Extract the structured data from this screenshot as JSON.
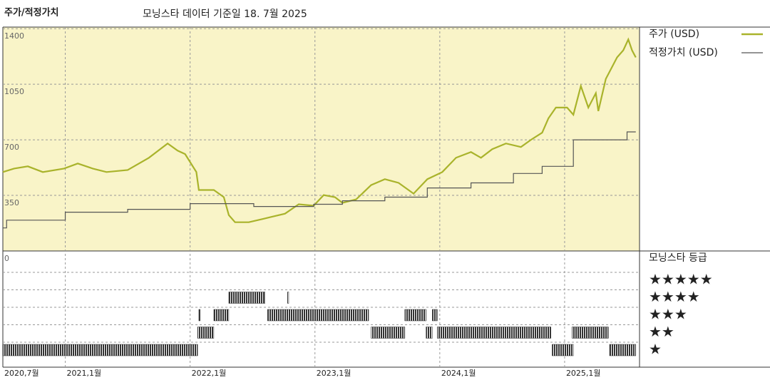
{
  "chart_data": {
    "type": "line",
    "title": "주가/적정가치",
    "subtitle": "모닝스타 데이터 기준일 18. 7월 2025",
    "xlim": [
      2020.5,
      2025.6
    ],
    "xticks": [
      {
        "value": 2020.5,
        "label": "2020,7월"
      },
      {
        "value": 2021,
        "label": "2021,1월"
      },
      {
        "value": 2022,
        "label": "2022,1월"
      },
      {
        "value": 2023,
        "label": "2023,1월"
      },
      {
        "value": 2024,
        "label": "2024,1월"
      },
      {
        "value": 2025,
        "label": "2025,1월"
      }
    ],
    "ylim": [
      0,
      1410
    ],
    "yticks": [
      0,
      350,
      700,
      1050,
      1400
    ],
    "grid": true,
    "background": "#f9f4c8",
    "series": [
      {
        "name": "주가 (USD)",
        "color": "#a9b32b",
        "step": false,
        "x": [
          2020.5,
          2020.59,
          2020.7,
          2020.82,
          2020.99,
          2021.1,
          2021.22,
          2021.33,
          2021.5,
          2021.67,
          2021.82,
          2021.9,
          2021.96,
          2022.05,
          2022.07,
          2022.19,
          2022.27,
          2022.31,
          2022.36,
          2022.47,
          2022.59,
          2022.76,
          2022.87,
          2022.99,
          2023.07,
          2023.16,
          2023.22,
          2023.33,
          2023.45,
          2023.56,
          2023.67,
          2023.79,
          2023.9,
          2024.02,
          2024.13,
          2024.25,
          2024.33,
          2024.42,
          2024.53,
          2024.65,
          2024.73,
          2024.82,
          2024.87,
          2024.93,
          2025.02,
          2025.07,
          2025.13,
          2025.19,
          2025.25,
          2025.27,
          2025.33,
          2025.36,
          2025.42,
          2025.47,
          2025.51,
          2025.54,
          2025.57
        ],
        "values": [
          497,
          519,
          533,
          497,
          519,
          551,
          519,
          497,
          510,
          587,
          677,
          632,
          610,
          497,
          384,
          384,
          339,
          226,
          181,
          181,
          203,
          235,
          294,
          285,
          352,
          339,
          303,
          325,
          415,
          452,
          429,
          361,
          452,
          497,
          587,
          623,
          587,
          641,
          677,
          655,
          700,
          745,
          835,
          903,
          903,
          858,
          1039,
          903,
          994,
          881,
          1084,
          1129,
          1219,
          1264,
          1332,
          1264,
          1219
        ]
      },
      {
        "name": "적정가치 (USD)",
        "color": "#555555",
        "step": true,
        "x": [
          2020.5,
          2020.53,
          2021.0,
          2021.5,
          2022.0,
          2022.51,
          2022.99,
          2023.22,
          2023.56,
          2023.9,
          2024.25,
          2024.59,
          2024.82,
          2025.07,
          2025.5,
          2025.57
        ],
        "values": [
          145,
          194,
          244,
          262,
          298,
          280,
          294,
          316,
          339,
          397,
          429,
          488,
          533,
          700,
          750,
          750
        ]
      }
    ],
    "rating_title": "모닝스타 등급",
    "rating_labels": [
      "★★★★★",
      "★★★★",
      "★★★",
      "★★",
      "★"
    ],
    "rating_stars": [
      5,
      4,
      3,
      2,
      1
    ],
    "rating_color": "#333333",
    "rating_segments": [
      {
        "start": 2020.5,
        "end": 2022.06,
        "stars": 1
      },
      {
        "start": 2024.9,
        "end": 2025.07,
        "stars": 1
      },
      {
        "start": 2025.36,
        "end": 2025.57,
        "stars": 1
      },
      {
        "start": 2022.06,
        "end": 2022.19,
        "stars": 2
      },
      {
        "start": 2023.45,
        "end": 2023.72,
        "stars": 2
      },
      {
        "start": 2023.89,
        "end": 2023.94,
        "stars": 2
      },
      {
        "start": 2023.98,
        "end": 2024.89,
        "stars": 2
      },
      {
        "start": 2025.06,
        "end": 2025.35,
        "stars": 2
      },
      {
        "start": 2022.07,
        "end": 2022.08,
        "stars": 3
      },
      {
        "start": 2022.19,
        "end": 2022.31,
        "stars": 3
      },
      {
        "start": 2022.62,
        "end": 2023.43,
        "stars": 3
      },
      {
        "start": 2023.72,
        "end": 2023.89,
        "stars": 3
      },
      {
        "start": 2023.94,
        "end": 2023.98,
        "stars": 3
      },
      {
        "start": 2022.31,
        "end": 2022.6,
        "stars": 4
      },
      {
        "start": 2022.78,
        "end": 2022.79,
        "stars": 4
      }
    ]
  }
}
